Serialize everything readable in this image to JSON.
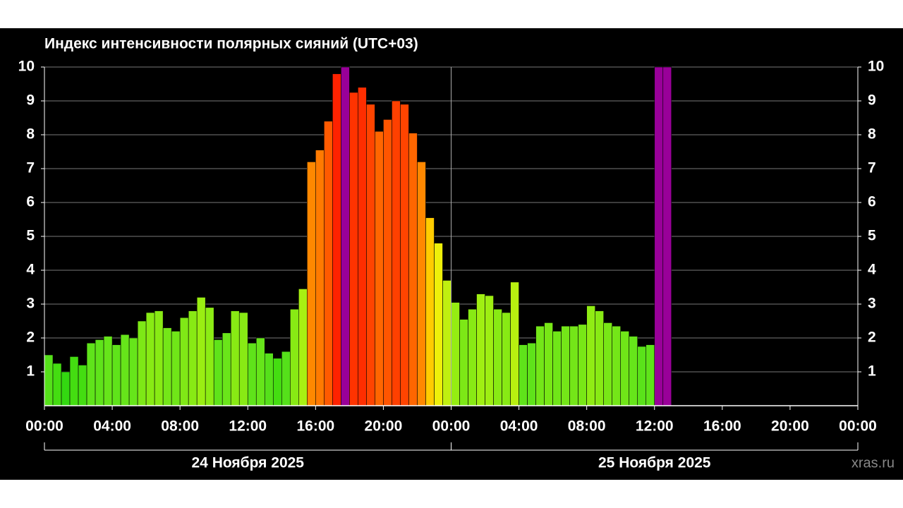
{
  "chart_data": {
    "type": "bar",
    "title": "Индекс интенсивности полярных сияний (UTC+03)",
    "x": [
      0,
      0.5,
      1,
      1.5,
      2,
      2.5,
      3,
      3.5,
      4,
      4.5,
      5,
      5.5,
      6,
      6.5,
      7,
      7.5,
      8,
      8.5,
      9,
      9.5,
      10,
      10.5,
      11,
      11.5,
      12,
      12.5,
      13,
      13.5,
      14,
      14.5,
      15,
      15.5,
      16,
      16.5,
      17,
      17.5,
      18,
      18.5,
      19,
      19.5,
      20,
      20.5,
      21,
      21.5,
      22,
      22.5,
      23,
      23.5,
      24,
      24.5,
      25,
      25.5,
      26,
      26.5,
      27,
      27.5,
      28,
      28.5,
      29,
      29.5,
      30,
      30.5,
      31,
      31.5,
      32,
      32.5,
      33,
      33.5,
      34,
      34.5,
      35,
      35.5,
      36,
      36.5
    ],
    "values": [
      1.5,
      1.25,
      1.0,
      1.45,
      1.2,
      1.85,
      1.95,
      2.05,
      1.8,
      2.1,
      2.0,
      2.5,
      2.75,
      2.8,
      2.3,
      2.2,
      2.6,
      2.8,
      3.2,
      2.9,
      1.95,
      2.15,
      2.8,
      2.75,
      1.85,
      2.0,
      1.55,
      1.4,
      1.6,
      2.85,
      3.45,
      7.2,
      7.55,
      8.4,
      9.8,
      10,
      9.25,
      9.4,
      8.9,
      8.1,
      8.45,
      9.0,
      8.9,
      8.05,
      7.2,
      5.55,
      4.8,
      3.7,
      3.05,
      2.55,
      2.85,
      3.3,
      3.25,
      2.85,
      2.75,
      3.65,
      1.8,
      1.85,
      2.35,
      2.45,
      2.2,
      2.35,
      2.35,
      2.4,
      2.95,
      2.8,
      2.45,
      2.35,
      2.2,
      2.05,
      1.75,
      1.8,
      10,
      10
    ],
    "colors": [
      "#55e01a",
      "#44dd11",
      "#33d811",
      "#44dd11",
      "#44dd11",
      "#5fe31a",
      "#5fe31a",
      "#66e51a",
      "#5fe31a",
      "#66e51a",
      "#66e51a",
      "#7de816",
      "#88ea14",
      "#88ea14",
      "#74e618",
      "#70e618",
      "#80e816",
      "#88ea14",
      "#9aee12",
      "#8cec14",
      "#5fe31a",
      "#6ae51a",
      "#88ea14",
      "#88ea14",
      "#5fe31a",
      "#66e51a",
      "#55e01a",
      "#44dd11",
      "#55e01a",
      "#88ea14",
      "#a8f012",
      "#ff8800",
      "#ff7a00",
      "#ff5a00",
      "#ff2200",
      "#990099",
      "#ff3300",
      "#ff2e00",
      "#ff4400",
      "#ff6600",
      "#ff5500",
      "#ff4000",
      "#ff4400",
      "#ff6600",
      "#ff8800",
      "#ffcc00",
      "#eef00a",
      "#c0f010",
      "#95ed12",
      "#7de816",
      "#88ea14",
      "#a0ef12",
      "#9eee12",
      "#88ea14",
      "#88ea14",
      "#b8f010",
      "#5fe31a",
      "#5fe31a",
      "#74e618",
      "#78e716",
      "#70e618",
      "#74e618",
      "#74e618",
      "#78e716",
      "#90ec14",
      "#88ea14",
      "#78e716",
      "#74e618",
      "#70e618",
      "#66e51a",
      "#5ae21a",
      "#5fe31a",
      "#990099",
      "#990099"
    ],
    "xlim": [
      0,
      48
    ],
    "xticks": [
      {
        "value": 0,
        "label": "00:00"
      },
      {
        "value": 4,
        "label": "04:00"
      },
      {
        "value": 8,
        "label": "08:00"
      },
      {
        "value": 12,
        "label": "12:00"
      },
      {
        "value": 16,
        "label": "16:00"
      },
      {
        "value": 20,
        "label": "20:00"
      },
      {
        "value": 24,
        "label": "00:00"
      },
      {
        "value": 28,
        "label": "04:00"
      },
      {
        "value": 32,
        "label": "08:00"
      },
      {
        "value": 36,
        "label": "12:00"
      },
      {
        "value": 40,
        "label": "16:00"
      },
      {
        "value": 44,
        "label": "20:00"
      },
      {
        "value": 48,
        "label": "00:00"
      }
    ],
    "ylim": [
      0,
      10
    ],
    "yticks": [
      1,
      2,
      3,
      4,
      5,
      6,
      7,
      8,
      9,
      10
    ],
    "grid": true,
    "x_group_labels": [
      "24 Ноября 2025",
      "25 Ноября 2025"
    ],
    "watermark": "xras.ru"
  }
}
